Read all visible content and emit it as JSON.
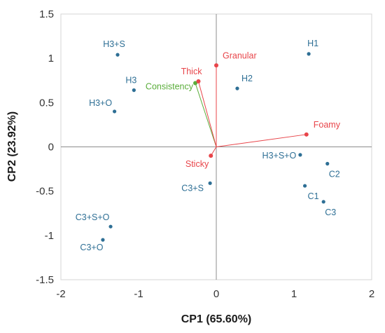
{
  "chart_data": {
    "type": "scatter",
    "xlabel": "CP1 (65.60%)",
    "ylabel": "CP2 (23.92%)",
    "xlim": [
      -2,
      2
    ],
    "ylim": [
      -1.5,
      1.5
    ],
    "x_ticks": [
      "-2",
      "-1",
      "0",
      "1",
      "2"
    ],
    "y_ticks": [
      "-1.5",
      "-1",
      "-0.5",
      "0",
      "0.5",
      "1",
      "1.5"
    ],
    "grid": false,
    "points": [
      {
        "label": "H1",
        "x": 1.19,
        "y": 1.05
      },
      {
        "label": "H3+S",
        "x": -1.27,
        "y": 1.04
      },
      {
        "label": "H3",
        "x": -1.06,
        "y": 0.64
      },
      {
        "label": "H2",
        "x": 0.27,
        "y": 0.66
      },
      {
        "label": "H3+O",
        "x": -1.31,
        "y": 0.4
      },
      {
        "label": "H3+S+O",
        "x": 1.08,
        "y": -0.09
      },
      {
        "label": "C2",
        "x": 1.43,
        "y": -0.19
      },
      {
        "label": "C3+S",
        "x": -0.08,
        "y": -0.41
      },
      {
        "label": "C1",
        "x": 1.14,
        "y": -0.44
      },
      {
        "label": "C3",
        "x": 1.38,
        "y": -0.62
      },
      {
        "label": "C3+S+O",
        "x": -1.36,
        "y": -0.9
      },
      {
        "label": "C3+O",
        "x": -1.46,
        "y": -1.05
      }
    ],
    "vectors": [
      {
        "label": "Granular",
        "x": 0.0,
        "y": 0.92,
        "color": "#e8454a"
      },
      {
        "label": "Thick",
        "x": -0.23,
        "y": 0.74,
        "color": "#e8454a"
      },
      {
        "label": "Consistency",
        "x": -0.27,
        "y": 0.72,
        "color": "#5aad3a"
      },
      {
        "label": "Foamy",
        "x": 1.16,
        "y": 0.14,
        "color": "#e8454a"
      },
      {
        "label": "Sticky",
        "x": -0.07,
        "y": -0.1,
        "color": "#e8454a"
      }
    ],
    "colors": {
      "points": "#2e6f95",
      "axis": "#8c8c8c",
      "frame": "#d4d4d4"
    }
  }
}
